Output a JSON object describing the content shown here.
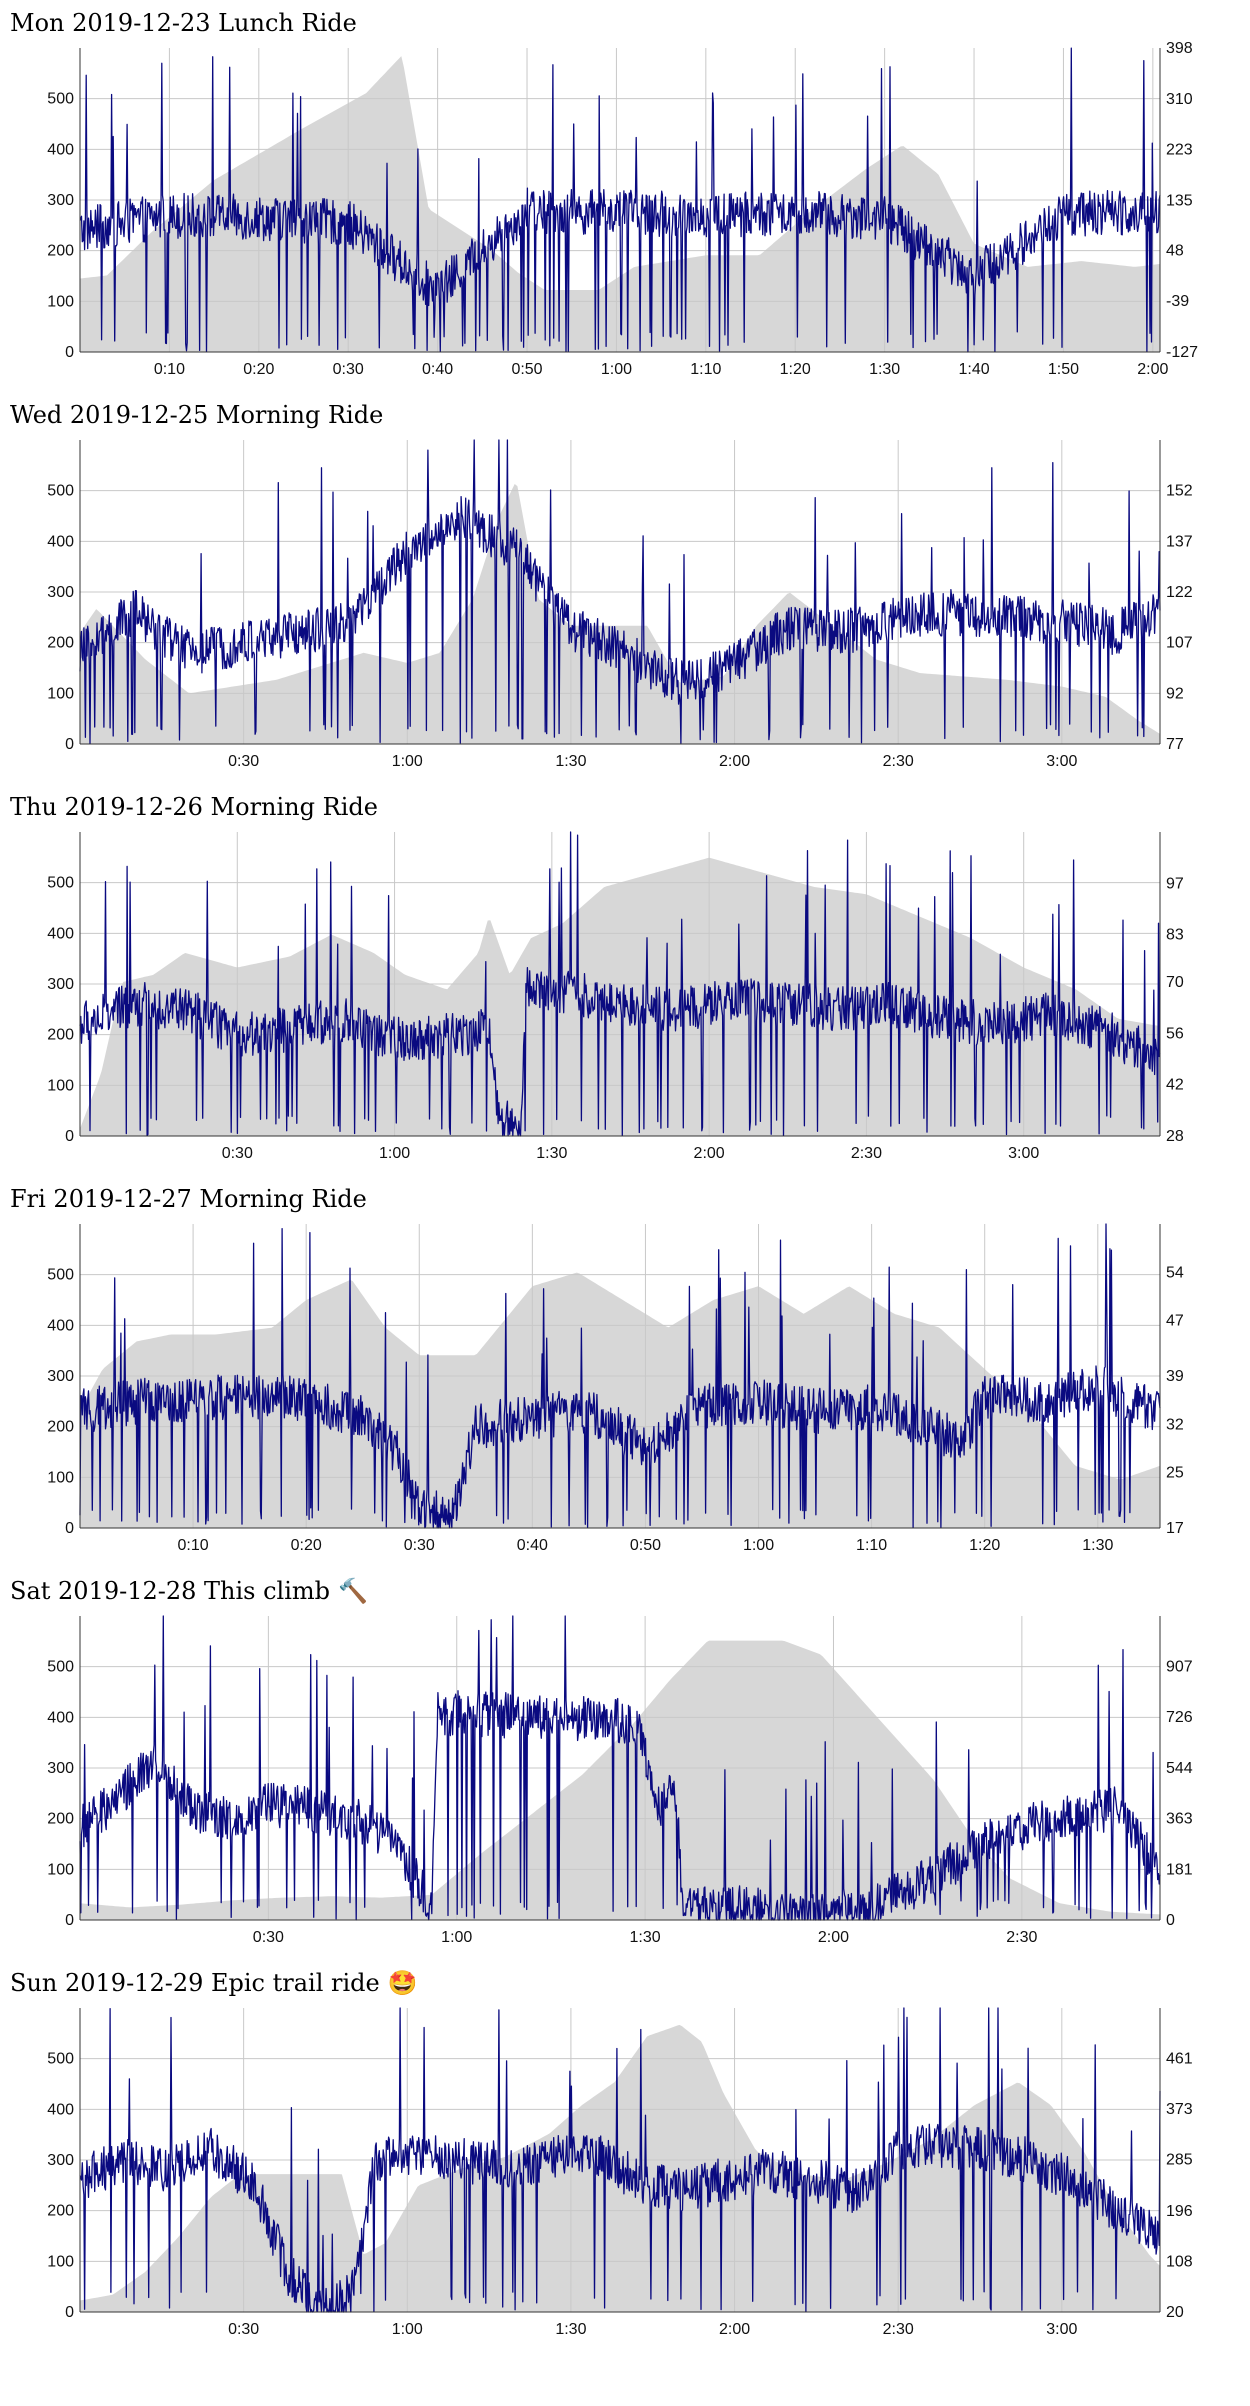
{
  "colors": {
    "power": "#0a0a80",
    "elevation": "#d7d7d7",
    "grid": "#c8c8c8",
    "axis": "#333333"
  },
  "chart_data": [
    {
      "type": "line",
      "title": "Mon 2019-12-23 Lunch Ride",
      "icon": "",
      "x_ticks": [
        "0:10",
        "0:20",
        "0:30",
        "0:40",
        "0:50",
        "1:00",
        "1:10",
        "1:20",
        "1:30",
        "1:40",
        "1:50",
        "2:00"
      ],
      "x_tick_minutes": [
        10,
        20,
        30,
        40,
        50,
        60,
        70,
        80,
        90,
        100,
        110,
        120
      ],
      "duration_minutes": 120.8,
      "y_left_ticks": [
        0,
        100,
        200,
        300,
        400,
        500
      ],
      "y_left_range": [
        0,
        600
      ],
      "y_right_ticks": [
        "-127",
        "-39",
        "48",
        "135",
        "223",
        "310",
        "398"
      ],
      "y_right_range": [
        -127,
        398
      ],
      "power_profile": [
        [
          0,
          240
        ],
        [
          10,
          270
        ],
        [
          20,
          265
        ],
        [
          30,
          255
        ],
        [
          40,
          120
        ],
        [
          50,
          280
        ],
        [
          60,
          275
        ],
        [
          70,
          270
        ],
        [
          80,
          275
        ],
        [
          90,
          265
        ],
        [
          100,
          150
        ],
        [
          110,
          270
        ],
        [
          120.8,
          280
        ]
      ],
      "elevation_profile": [
        [
          0,
          0
        ],
        [
          3,
          5
        ],
        [
          8,
          80
        ],
        [
          15,
          170
        ],
        [
          25,
          260
        ],
        [
          32,
          320
        ],
        [
          36,
          385
        ],
        [
          39,
          120
        ],
        [
          46,
          50
        ],
        [
          49,
          10
        ],
        [
          52,
          -20
        ],
        [
          58,
          -20
        ],
        [
          62,
          20
        ],
        [
          70,
          40
        ],
        [
          76,
          40
        ],
        [
          82,
          120
        ],
        [
          88,
          190
        ],
        [
          92,
          230
        ],
        [
          96,
          180
        ],
        [
          100,
          60
        ],
        [
          106,
          20
        ],
        [
          112,
          30
        ],
        [
          118,
          20
        ],
        [
          120.8,
          25
        ]
      ]
    },
    {
      "type": "line",
      "title": "Wed 2019-12-25 Morning Ride",
      "icon": "",
      "x_ticks": [
        "0:30",
        "1:00",
        "1:30",
        "2:00",
        "2:30",
        "3:00"
      ],
      "x_tick_minutes": [
        30,
        60,
        90,
        120,
        150,
        180
      ],
      "duration_minutes": 198,
      "y_left_ticks": [
        0,
        100,
        200,
        300,
        400,
        500
      ],
      "y_left_range": [
        0,
        600
      ],
      "y_right_ticks": [
        "77",
        "92",
        "107",
        "122",
        "137",
        "152"
      ],
      "y_right_range": [
        77,
        167
      ],
      "power_profile": [
        [
          0,
          180
        ],
        [
          10,
          260
        ],
        [
          20,
          180
        ],
        [
          30,
          200
        ],
        [
          40,
          220
        ],
        [
          50,
          240
        ],
        [
          60,
          380
        ],
        [
          70,
          450
        ],
        [
          80,
          380
        ],
        [
          90,
          230
        ],
        [
          100,
          180
        ],
        [
          110,
          120
        ],
        [
          120,
          160
        ],
        [
          130,
          230
        ],
        [
          140,
          220
        ],
        [
          150,
          250
        ],
        [
          160,
          260
        ],
        [
          170,
          250
        ],
        [
          180,
          240
        ],
        [
          190,
          220
        ],
        [
          198,
          260
        ]
      ],
      "elevation_profile": [
        [
          0,
          110
        ],
        [
          3,
          117
        ],
        [
          6,
          112
        ],
        [
          12,
          102
        ],
        [
          20,
          92
        ],
        [
          28,
          94
        ],
        [
          36,
          96
        ],
        [
          44,
          100
        ],
        [
          52,
          104
        ],
        [
          60,
          101
        ],
        [
          66,
          104
        ],
        [
          72,
          120
        ],
        [
          77,
          145
        ],
        [
          80,
          155
        ],
        [
          84,
          120
        ],
        [
          90,
          112
        ],
        [
          104,
          112
        ],
        [
          110,
          95
        ],
        [
          118,
          97
        ],
        [
          124,
          112
        ],
        [
          130,
          122
        ],
        [
          138,
          112
        ],
        [
          146,
          102
        ],
        [
          154,
          98
        ],
        [
          162,
          97
        ],
        [
          170,
          96
        ],
        [
          180,
          94
        ],
        [
          188,
          91
        ],
        [
          194,
          84
        ],
        [
          198,
          80
        ]
      ]
    },
    {
      "type": "line",
      "title": "Thu 2019-12-26 Morning Ride",
      "icon": "",
      "x_ticks": [
        "0:30",
        "1:00",
        "1:30",
        "2:00",
        "2:30",
        "3:00"
      ],
      "x_tick_minutes": [
        30,
        60,
        90,
        120,
        150,
        180
      ],
      "duration_minutes": 206,
      "y_left_ticks": [
        0,
        100,
        200,
        300,
        400,
        500
      ],
      "y_left_range": [
        0,
        600
      ],
      "y_right_ticks": [
        "28",
        "42",
        "56",
        "70",
        "83",
        "97"
      ],
      "y_right_range": [
        28,
        111
      ],
      "power_profile": [
        [
          0,
          220
        ],
        [
          10,
          260
        ],
        [
          20,
          250
        ],
        [
          30,
          200
        ],
        [
          40,
          210
        ],
        [
          50,
          230
        ],
        [
          60,
          190
        ],
        [
          70,
          200
        ],
        [
          78,
          210
        ],
        [
          80,
          40
        ],
        [
          84,
          0
        ],
        [
          85,
          300
        ],
        [
          95,
          280
        ],
        [
          105,
          260
        ],
        [
          115,
          250
        ],
        [
          125,
          270
        ],
        [
          135,
          260
        ],
        [
          145,
          250
        ],
        [
          155,
          260
        ],
        [
          165,
          230
        ],
        [
          175,
          220
        ],
        [
          185,
          240
        ],
        [
          195,
          210
        ],
        [
          206,
          150
        ]
      ],
      "elevation_profile": [
        [
          0,
          30
        ],
        [
          4,
          45
        ],
        [
          8,
          70
        ],
        [
          14,
          72
        ],
        [
          20,
          78
        ],
        [
          30,
          74
        ],
        [
          40,
          77
        ],
        [
          48,
          83
        ],
        [
          56,
          78
        ],
        [
          62,
          72
        ],
        [
          70,
          68
        ],
        [
          76,
          78
        ],
        [
          78,
          88
        ],
        [
          82,
          72
        ],
        [
          86,
          82
        ],
        [
          92,
          86
        ],
        [
          100,
          96
        ],
        [
          110,
          100
        ],
        [
          120,
          104
        ],
        [
          130,
          100
        ],
        [
          140,
          96
        ],
        [
          150,
          94
        ],
        [
          160,
          88
        ],
        [
          170,
          82
        ],
        [
          180,
          74
        ],
        [
          190,
          68
        ],
        [
          198,
          60
        ],
        [
          206,
          58
        ]
      ]
    },
    {
      "type": "line",
      "title": "Fri 2019-12-27 Morning Ride",
      "icon": "",
      "x_ticks": [
        "0:10",
        "0:20",
        "0:30",
        "0:40",
        "0:50",
        "1:00",
        "1:10",
        "1:20",
        "1:30"
      ],
      "x_tick_minutes": [
        10,
        20,
        30,
        40,
        50,
        60,
        70,
        80,
        90
      ],
      "duration_minutes": 95.5,
      "y_left_ticks": [
        0,
        100,
        200,
        300,
        400,
        500
      ],
      "y_left_range": [
        0,
        600
      ],
      "y_right_ticks": [
        "17",
        "25",
        "32",
        "39",
        "47",
        "54"
      ],
      "y_right_range": [
        17,
        61
      ],
      "power_profile": [
        [
          0,
          230
        ],
        [
          5,
          250
        ],
        [
          10,
          255
        ],
        [
          15,
          260
        ],
        [
          18,
          260
        ],
        [
          20,
          250
        ],
        [
          25,
          220
        ],
        [
          28,
          150
        ],
        [
          30,
          40
        ],
        [
          33,
          30
        ],
        [
          35,
          200
        ],
        [
          40,
          220
        ],
        [
          45,
          230
        ],
        [
          50,
          160
        ],
        [
          55,
          240
        ],
        [
          60,
          250
        ],
        [
          65,
          230
        ],
        [
          70,
          240
        ],
        [
          75,
          200
        ],
        [
          78,
          170
        ],
        [
          80,
          260
        ],
        [
          85,
          250
        ],
        [
          90,
          280
        ],
        [
          95.5,
          230
        ]
      ],
      "elevation_profile": [
        [
          0,
          34
        ],
        [
          2,
          40
        ],
        [
          5,
          44
        ],
        [
          8,
          45
        ],
        [
          12,
          45
        ],
        [
          17,
          46
        ],
        [
          20,
          50
        ],
        [
          24,
          53
        ],
        [
          27,
          46
        ],
        [
          30,
          42
        ],
        [
          35,
          42
        ],
        [
          40,
          52
        ],
        [
          44,
          54
        ],
        [
          48,
          50
        ],
        [
          52,
          46
        ],
        [
          56,
          50
        ],
        [
          60,
          52
        ],
        [
          64,
          48
        ],
        [
          68,
          52
        ],
        [
          72,
          48
        ],
        [
          76,
          46
        ],
        [
          80,
          40
        ],
        [
          84,
          34
        ],
        [
          88,
          26
        ],
        [
          92,
          24
        ],
        [
          95.5,
          26
        ]
      ]
    },
    {
      "type": "line",
      "title": "Sat 2019-12-28 This climb",
      "icon": "🔨",
      "x_ticks": [
        "0:30",
        "1:00",
        "1:30",
        "2:00",
        "2:30"
      ],
      "x_tick_minutes": [
        30,
        60,
        90,
        120,
        150
      ],
      "duration_minutes": 172,
      "y_left_ticks": [
        0,
        100,
        200,
        300,
        400,
        500
      ],
      "y_left_range": [
        0,
        600
      ],
      "y_right_ticks": [
        "0",
        "181",
        "363",
        "544",
        "726",
        "907"
      ],
      "y_right_range": [
        0,
        1088
      ],
      "power_profile": [
        [
          0,
          180
        ],
        [
          6,
          240
        ],
        [
          12,
          320
        ],
        [
          18,
          220
        ],
        [
          24,
          200
        ],
        [
          30,
          230
        ],
        [
          36,
          220
        ],
        [
          44,
          200
        ],
        [
          50,
          160
        ],
        [
          56,
          20
        ],
        [
          57,
          410
        ],
        [
          65,
          405
        ],
        [
          75,
          400
        ],
        [
          85,
          395
        ],
        [
          89,
          380
        ],
        [
          92,
          220
        ],
        [
          95,
          260
        ],
        [
          96,
          30
        ],
        [
          108,
          20
        ],
        [
          115,
          10
        ],
        [
          125,
          20
        ],
        [
          135,
          80
        ],
        [
          145,
          160
        ],
        [
          155,
          200
        ],
        [
          165,
          220
        ],
        [
          172,
          100
        ]
      ],
      "elevation_profile": [
        [
          0,
          60
        ],
        [
          8,
          45
        ],
        [
          16,
          55
        ],
        [
          24,
          70
        ],
        [
          32,
          80
        ],
        [
          40,
          85
        ],
        [
          48,
          80
        ],
        [
          56,
          90
        ],
        [
          64,
          240
        ],
        [
          72,
          380
        ],
        [
          80,
          520
        ],
        [
          88,
          700
        ],
        [
          94,
          860
        ],
        [
          100,
          1000
        ],
        [
          112,
          1000
        ],
        [
          118,
          950
        ],
        [
          124,
          800
        ],
        [
          130,
          650
        ],
        [
          136,
          500
        ],
        [
          142,
          300
        ],
        [
          148,
          150
        ],
        [
          156,
          60
        ],
        [
          164,
          30
        ],
        [
          172,
          20
        ]
      ]
    },
    {
      "type": "line",
      "title": "Sun 2019-12-29 Epic trail ride",
      "icon": "🤩",
      "x_ticks": [
        "0:30",
        "1:00",
        "1:30",
        "2:00",
        "2:30",
        "3:00"
      ],
      "x_tick_minutes": [
        30,
        60,
        90,
        120,
        150,
        180
      ],
      "duration_minutes": 198,
      "y_left_ticks": [
        0,
        100,
        200,
        300,
        400,
        500
      ],
      "y_left_range": [
        0,
        600
      ],
      "y_right_ticks": [
        "20",
        "108",
        "196",
        "285",
        "373",
        "461"
      ],
      "y_right_range": [
        20,
        549
      ],
      "power_profile": [
        [
          0,
          260
        ],
        [
          8,
          300
        ],
        [
          16,
          280
        ],
        [
          24,
          320
        ],
        [
          32,
          250
        ],
        [
          38,
          80
        ],
        [
          44,
          0
        ],
        [
          50,
          40
        ],
        [
          54,
          300
        ],
        [
          62,
          310
        ],
        [
          70,
          300
        ],
        [
          78,
          290
        ],
        [
          86,
          300
        ],
        [
          94,
          320
        ],
        [
          102,
          260
        ],
        [
          110,
          240
        ],
        [
          118,
          260
        ],
        [
          126,
          280
        ],
        [
          134,
          260
        ],
        [
          142,
          240
        ],
        [
          150,
          320
        ],
        [
          158,
          330
        ],
        [
          166,
          320
        ],
        [
          174,
          300
        ],
        [
          182,
          260
        ],
        [
          190,
          200
        ],
        [
          198,
          150
        ]
      ],
      "elevation_profile": [
        [
          0,
          40
        ],
        [
          6,
          50
        ],
        [
          12,
          90
        ],
        [
          18,
          150
        ],
        [
          24,
          220
        ],
        [
          28,
          250
        ],
        [
          32,
          260
        ],
        [
          40,
          260
        ],
        [
          48,
          260
        ],
        [
          52,
          120
        ],
        [
          56,
          140
        ],
        [
          62,
          240
        ],
        [
          70,
          270
        ],
        [
          78,
          290
        ],
        [
          86,
          330
        ],
        [
          92,
          380
        ],
        [
          98,
          420
        ],
        [
          104,
          500
        ],
        [
          110,
          520
        ],
        [
          114,
          490
        ],
        [
          118,
          400
        ],
        [
          124,
          300
        ],
        [
          132,
          260
        ],
        [
          140,
          250
        ],
        [
          148,
          280
        ],
        [
          156,
          320
        ],
        [
          164,
          380
        ],
        [
          172,
          420
        ],
        [
          178,
          380
        ],
        [
          184,
          300
        ],
        [
          190,
          200
        ],
        [
          196,
          120
        ],
        [
          198,
          100
        ]
      ]
    }
  ]
}
